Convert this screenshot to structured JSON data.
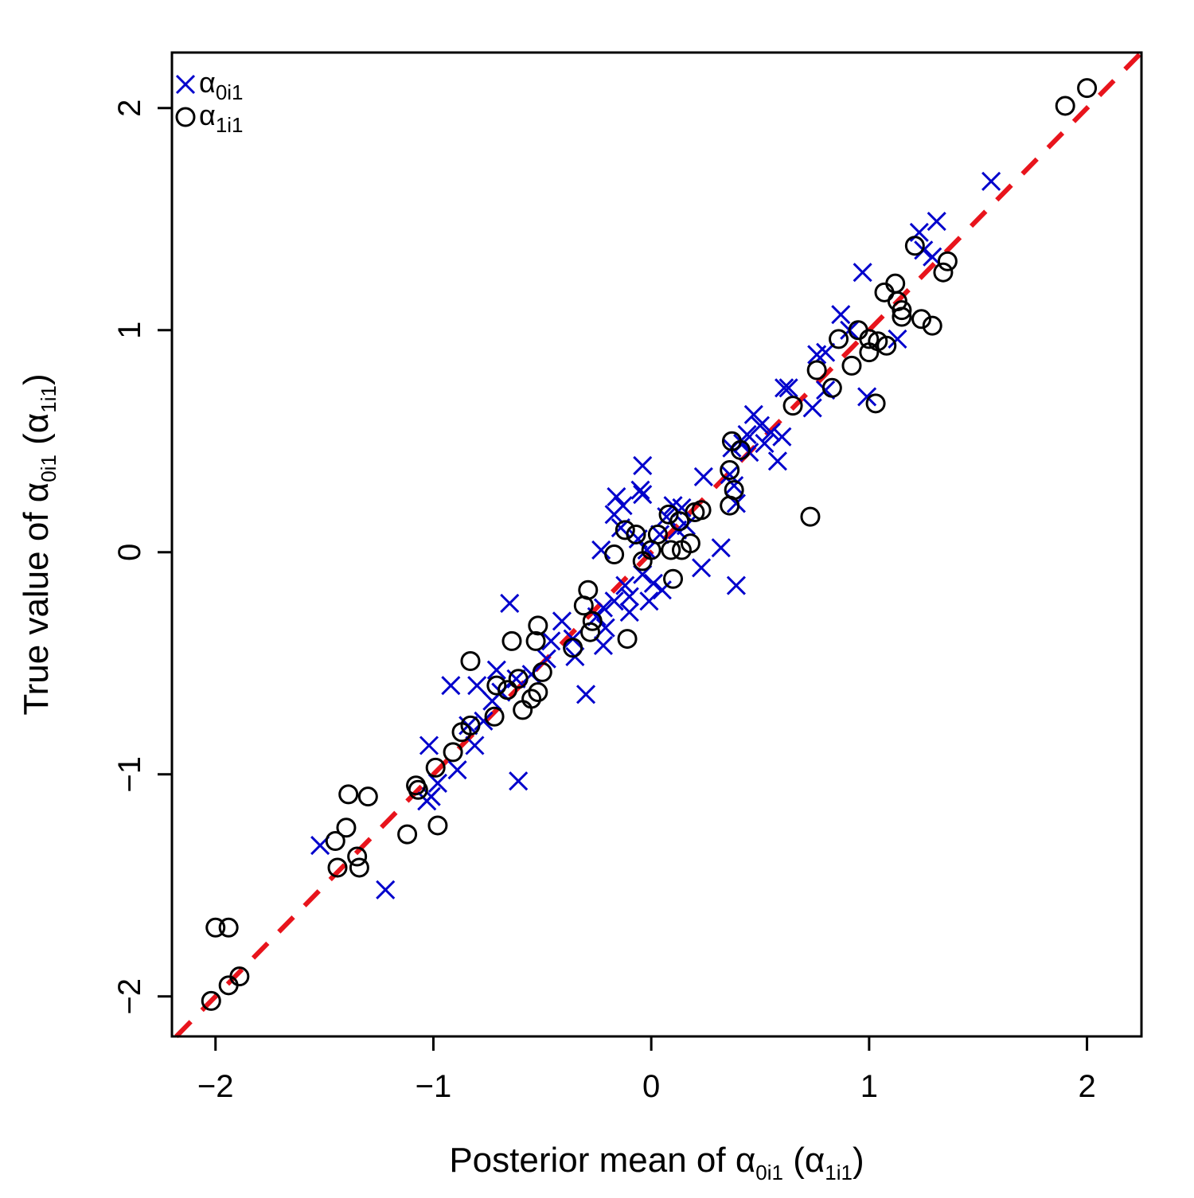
{
  "chart_data": {
    "type": "scatter",
    "title": "",
    "xlabel": {
      "prefix": "Posterior mean of ",
      "sym1": "α",
      "sub1": "0i1",
      "mid": "  (",
      "sym2": "α",
      "sub2": "1i1",
      "suffix": ")"
    },
    "ylabel": {
      "prefix": "True value of ",
      "sym1": "α",
      "sub1": "0i1",
      "mid": "  (",
      "sym2": "α",
      "sub2": "1i1",
      "suffix": ")"
    },
    "xlim": [
      -2.2,
      2.25
    ],
    "ylim": [
      -2.18,
      2.25
    ],
    "xticks": [
      -2,
      -1,
      0,
      1,
      2
    ],
    "yticks": [
      -2,
      -1,
      0,
      1,
      2
    ],
    "xtick_labels": [
      "−2",
      "−1",
      "0",
      "1",
      "2"
    ],
    "ytick_labels": [
      "−2",
      "−1",
      "0",
      "1",
      "2"
    ],
    "reference_line": {
      "slope": 1,
      "intercept": 0,
      "style": "dashed",
      "color": "#e8141c"
    },
    "legend": {
      "position": "top-left",
      "entries": [
        {
          "marker": "x",
          "sym": "α",
          "sub": "0i1",
          "color": "#0000cc"
        },
        {
          "marker": "o",
          "sym": "α",
          "sub": "1i1",
          "color": "#000000"
        }
      ]
    },
    "series": [
      {
        "name": "α0i1",
        "marker": "x",
        "color": "#0000cc",
        "points": [
          [
            1.56,
            1.67
          ],
          [
            1.31,
            1.49
          ],
          [
            1.23,
            1.44
          ],
          [
            1.25,
            1.36
          ],
          [
            1.29,
            1.33
          ],
          [
            0.97,
            1.26
          ],
          [
            0.87,
            1.07
          ],
          [
            0.91,
            1.0
          ],
          [
            1.13,
            0.96
          ],
          [
            0.76,
            0.89
          ],
          [
            0.8,
            0.9
          ],
          [
            0.61,
            0.74
          ],
          [
            0.63,
            0.74
          ],
          [
            0.8,
            0.73
          ],
          [
            0.74,
            0.65
          ],
          [
            0.99,
            0.7
          ],
          [
            0.47,
            0.62
          ],
          [
            0.5,
            0.57
          ],
          [
            0.44,
            0.53
          ],
          [
            0.55,
            0.54
          ],
          [
            0.6,
            0.52
          ],
          [
            0.42,
            0.49
          ],
          [
            0.45,
            0.45
          ],
          [
            0.52,
            0.49
          ],
          [
            0.37,
            0.47
          ],
          [
            0.58,
            0.41
          ],
          [
            0.36,
            0.35
          ],
          [
            0.24,
            0.34
          ],
          [
            0.38,
            0.3
          ],
          [
            0.39,
            0.22
          ],
          [
            -0.04,
            0.39
          ],
          [
            -0.05,
            0.28
          ],
          [
            -0.04,
            0.26
          ],
          [
            -0.16,
            0.25
          ],
          [
            -0.13,
            0.21
          ],
          [
            -0.17,
            0.17
          ],
          [
            -0.14,
            0.11
          ],
          [
            0.1,
            0.21
          ],
          [
            0.14,
            0.2
          ],
          [
            0.07,
            0.16
          ],
          [
            0.12,
            0.1
          ],
          [
            0.16,
            0.12
          ],
          [
            0.04,
            0.08
          ],
          [
            -0.06,
            0.06
          ],
          [
            -0.23,
            0.01
          ],
          [
            0.32,
            0.02
          ],
          [
            0.23,
            -0.07
          ],
          [
            -0.02,
            0.01
          ],
          [
            -0.04,
            -0.1
          ],
          [
            0.01,
            -0.14
          ],
          [
            0.05,
            -0.17
          ],
          [
            -0.01,
            -0.22
          ],
          [
            -0.12,
            -0.15
          ],
          [
            -0.1,
            -0.2
          ],
          [
            -0.17,
            -0.22
          ],
          [
            -0.22,
            -0.25
          ],
          [
            -0.25,
            -0.29
          ],
          [
            -0.21,
            -0.34
          ],
          [
            -0.1,
            -0.27
          ],
          [
            0.39,
            -0.15
          ],
          [
            -0.65,
            -0.23
          ],
          [
            -0.41,
            -0.31
          ],
          [
            -0.36,
            -0.39
          ],
          [
            -0.46,
            -0.4
          ],
          [
            -0.22,
            -0.42
          ],
          [
            -0.35,
            -0.47
          ],
          [
            -0.48,
            -0.48
          ],
          [
            -0.55,
            -0.55
          ],
          [
            -0.71,
            -0.53
          ],
          [
            -0.62,
            -0.57
          ],
          [
            -0.8,
            -0.6
          ],
          [
            -0.92,
            -0.6
          ],
          [
            -0.69,
            -0.63
          ],
          [
            -0.73,
            -0.67
          ],
          [
            -0.3,
            -0.64
          ],
          [
            -0.84,
            -0.78
          ],
          [
            -0.77,
            -0.76
          ],
          [
            -0.81,
            -0.87
          ],
          [
            -1.02,
            -0.87
          ],
          [
            -0.89,
            -0.98
          ],
          [
            -0.98,
            -1.04
          ],
          [
            -0.61,
            -1.03
          ],
          [
            -1.01,
            -1.1
          ],
          [
            -1.03,
            -1.12
          ],
          [
            -1.52,
            -1.32
          ],
          [
            -1.22,
            -1.52
          ]
        ]
      },
      {
        "name": "α1i1",
        "marker": "o",
        "color": "#000000",
        "points": [
          [
            2.0,
            2.09
          ],
          [
            1.9,
            2.01
          ],
          [
            1.21,
            1.38
          ],
          [
            1.36,
            1.31
          ],
          [
            1.34,
            1.26
          ],
          [
            1.12,
            1.21
          ],
          [
            1.07,
            1.17
          ],
          [
            1.13,
            1.13
          ],
          [
            1.15,
            1.09
          ],
          [
            1.24,
            1.05
          ],
          [
            1.15,
            1.06
          ],
          [
            1.29,
            1.02
          ],
          [
            0.95,
            1.0
          ],
          [
            1.0,
            0.96
          ],
          [
            1.04,
            0.95
          ],
          [
            1.08,
            0.93
          ],
          [
            0.86,
            0.96
          ],
          [
            1.0,
            0.9
          ],
          [
            0.92,
            0.84
          ],
          [
            0.76,
            0.82
          ],
          [
            0.83,
            0.74
          ],
          [
            1.03,
            0.67
          ],
          [
            0.65,
            0.66
          ],
          [
            0.37,
            0.5
          ],
          [
            0.41,
            0.46
          ],
          [
            0.36,
            0.37
          ],
          [
            0.38,
            0.28
          ],
          [
            0.36,
            0.21
          ],
          [
            0.73,
            0.16
          ],
          [
            0.23,
            0.19
          ],
          [
            0.2,
            0.18
          ],
          [
            0.08,
            0.17
          ],
          [
            0.13,
            0.14
          ],
          [
            -0.12,
            0.1
          ],
          [
            -0.07,
            0.08
          ],
          [
            0.03,
            0.08
          ],
          [
            0.18,
            0.04
          ],
          [
            0.09,
            0.01
          ],
          [
            0.14,
            0.01
          ],
          [
            0.0,
            0.01
          ],
          [
            -0.17,
            -0.01
          ],
          [
            -0.04,
            -0.04
          ],
          [
            0.1,
            -0.12
          ],
          [
            -0.29,
            -0.17
          ],
          [
            -0.31,
            -0.24
          ],
          [
            -0.27,
            -0.31
          ],
          [
            -0.28,
            -0.36
          ],
          [
            -0.11,
            -0.39
          ],
          [
            -0.64,
            -0.4
          ],
          [
            -0.52,
            -0.33
          ],
          [
            -0.53,
            -0.4
          ],
          [
            -0.83,
            -0.49
          ],
          [
            -0.36,
            -0.43
          ],
          [
            -0.5,
            -0.54
          ],
          [
            -0.61,
            -0.57
          ],
          [
            -0.71,
            -0.6
          ],
          [
            -0.52,
            -0.63
          ],
          [
            -0.55,
            -0.66
          ],
          [
            -0.59,
            -0.71
          ],
          [
            -0.66,
            -0.62
          ],
          [
            -0.72,
            -0.74
          ],
          [
            -0.83,
            -0.78
          ],
          [
            -0.87,
            -0.81
          ],
          [
            -0.91,
            -0.9
          ],
          [
            -0.99,
            -0.97
          ],
          [
            -1.08,
            -1.05
          ],
          [
            -1.07,
            -1.07
          ],
          [
            -1.39,
            -1.09
          ],
          [
            -1.3,
            -1.1
          ],
          [
            -1.4,
            -1.24
          ],
          [
            -0.98,
            -1.23
          ],
          [
            -1.12,
            -1.27
          ],
          [
            -1.45,
            -1.3
          ],
          [
            -1.35,
            -1.37
          ],
          [
            -1.44,
            -1.42
          ],
          [
            -1.34,
            -1.42
          ],
          [
            -2.0,
            -1.69
          ],
          [
            -1.94,
            -1.69
          ],
          [
            -1.89,
            -1.91
          ],
          [
            -1.94,
            -1.95
          ],
          [
            -2.02,
            -2.02
          ]
        ]
      }
    ]
  }
}
